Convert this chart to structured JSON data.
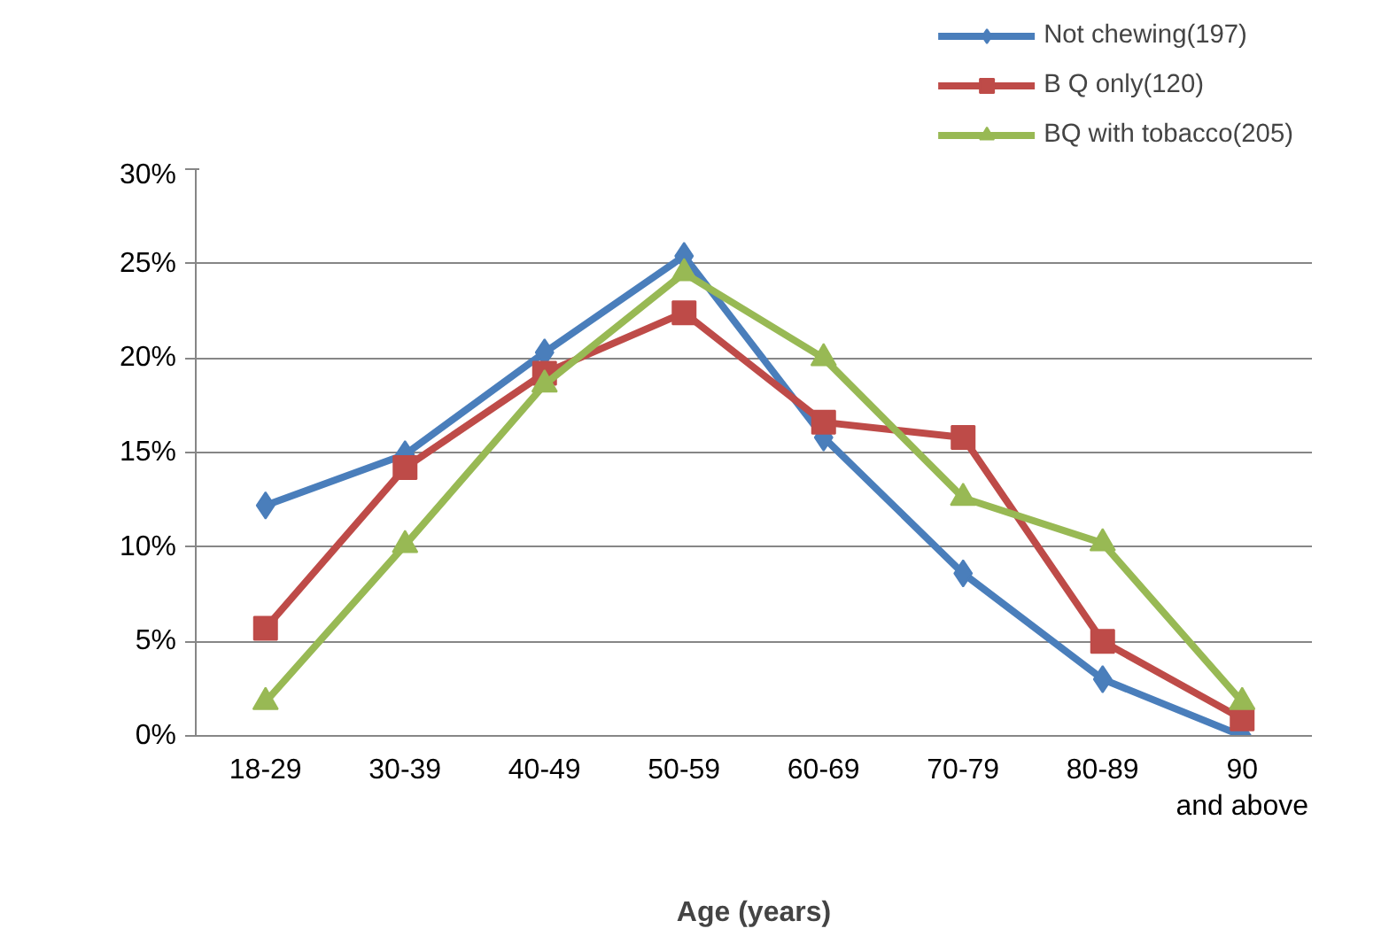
{
  "chart_data": {
    "type": "line",
    "xlabel": "Age (years)",
    "categories": [
      "18-29",
      "30-39",
      "40-49",
      "50-59",
      "60-69",
      "70-79",
      "80-89",
      "90 and above"
    ],
    "series": [
      {
        "name": "Not chewing(197)",
        "color": "#4a7ebb",
        "marker": "diamond",
        "values": [
          12.2,
          14.9,
          20.3,
          25.4,
          15.8,
          8.6,
          3.0,
          0
        ]
      },
      {
        "name": "B Q only(120)",
        "color": "#be4b48",
        "marker": "square",
        "values": [
          5.7,
          14.2,
          19.2,
          22.4,
          16.6,
          15.8,
          5.0,
          0.9
        ]
      },
      {
        "name": "BQ with tobacco(205)",
        "color": "#98b954",
        "marker": "triangle",
        "values": [
          1.8,
          10.1,
          18.6,
          24.5,
          20.0,
          12.6,
          10.2,
          1.8
        ]
      }
    ],
    "ylim": [
      0,
      30
    ],
    "yticks": [
      {
        "value": 0,
        "label": "0%"
      },
      {
        "value": 5,
        "label": "5%"
      },
      {
        "value": 10,
        "label": "10%"
      },
      {
        "value": 15,
        "label": "15%"
      },
      {
        "value": 20,
        "label": "20%"
      },
      {
        "value": 25,
        "label": "25%"
      },
      {
        "value": 30,
        "label": "30%"
      }
    ],
    "grid": "y",
    "legend": "top right"
  }
}
